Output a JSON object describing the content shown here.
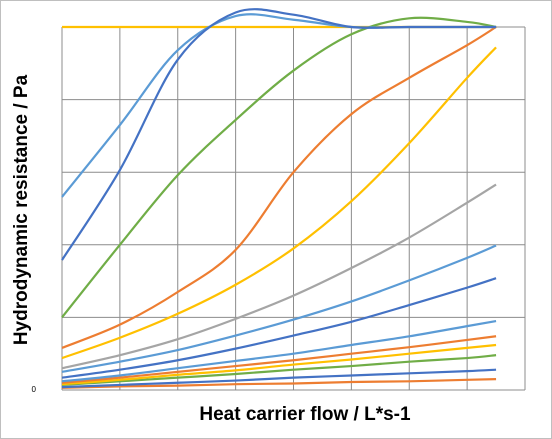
{
  "chart_data": {
    "type": "line",
    "y_label": "Hydrodynamic resistance / Pa",
    "x_label": "Heat carrier flow  / L*s-1",
    "xlim": [
      0,
      8
    ],
    "ylim": [
      0,
      5
    ],
    "yticks": [
      0
    ],
    "grid": true,
    "x": [
      0,
      1,
      2,
      3,
      4,
      5,
      6,
      7,
      7.5
    ],
    "series": [
      {
        "color": "#ffc000",
        "values": [
          5,
          5,
          5,
          5,
          5,
          5,
          5,
          5,
          5
        ]
      },
      {
        "color": "#ed7d31",
        "values": [
          0.03,
          0.05,
          0.06,
          0.08,
          0.09,
          0.11,
          0.12,
          0.14,
          0.15
        ]
      },
      {
        "color": "#4472c4",
        "values": [
          0.04,
          0.07,
          0.1,
          0.13,
          0.17,
          0.2,
          0.23,
          0.26,
          0.28
        ]
      },
      {
        "color": "#70ad47",
        "values": [
          0.07,
          0.12,
          0.17,
          0.22,
          0.28,
          0.33,
          0.39,
          0.44,
          0.48
        ]
      },
      {
        "color": "#ffc000",
        "values": [
          0.08,
          0.14,
          0.21,
          0.27,
          0.35,
          0.42,
          0.5,
          0.58,
          0.62
        ]
      },
      {
        "color": "#ed7d31",
        "values": [
          0.1,
          0.17,
          0.25,
          0.33,
          0.41,
          0.5,
          0.59,
          0.69,
          0.74
        ]
      },
      {
        "color": "#5b9bd5",
        "values": [
          0.12,
          0.2,
          0.3,
          0.4,
          0.5,
          0.62,
          0.74,
          0.88,
          0.95
        ]
      },
      {
        "color": "#4472c4",
        "values": [
          0.17,
          0.28,
          0.41,
          0.57,
          0.75,
          0.94,
          1.17,
          1.41,
          1.54
        ]
      },
      {
        "color": "#5b9bd5",
        "values": [
          0.25,
          0.39,
          0.55,
          0.75,
          0.97,
          1.22,
          1.51,
          1.82,
          1.99
        ]
      },
      {
        "color": "#a5a5a5",
        "values": [
          0.3,
          0.48,
          0.7,
          0.98,
          1.3,
          1.68,
          2.1,
          2.58,
          2.83
        ]
      },
      {
        "color": "#ffc000",
        "values": [
          0.44,
          0.72,
          1.05,
          1.45,
          1.95,
          2.6,
          3.4,
          4.3,
          4.72
        ]
      },
      {
        "color": "#ed7d31",
        "values": [
          0.58,
          0.9,
          1.35,
          1.93,
          3.0,
          3.8,
          4.3,
          4.75,
          5.0
        ]
      },
      {
        "color": "#70ad47",
        "values": [
          1.0,
          2.0,
          2.96,
          3.72,
          4.4,
          4.9,
          5.12,
          5.07,
          5.0
        ]
      },
      {
        "color": "#5b9bd5",
        "values": [
          2.66,
          3.65,
          4.68,
          5.15,
          5.1,
          5.0,
          5.0,
          5.0,
          5.0
        ]
      },
      {
        "color": "#4472c4",
        "values": [
          1.79,
          3.03,
          4.55,
          5.2,
          5.17,
          5.0,
          5.0,
          5.0,
          5.0
        ]
      }
    ]
  }
}
